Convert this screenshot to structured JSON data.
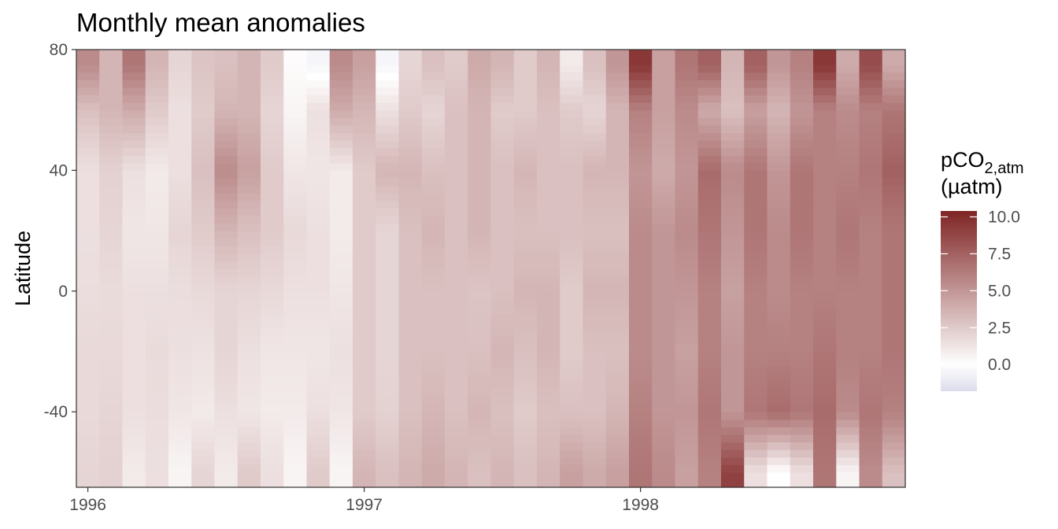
{
  "chart_data": {
    "type": "heatmap",
    "title": "Monthly mean anomalies",
    "xlabel": "",
    "ylabel": "Latitude",
    "x_ticks": [
      "1996",
      "1997",
      "1998"
    ],
    "x_range": [
      "1996-01",
      "1998-12"
    ],
    "y_ticks": [
      "80",
      "40",
      "0",
      "-40"
    ],
    "ylim": [
      -65,
      80
    ],
    "grid": false,
    "legend": {
      "title_main": "pCO",
      "title_sub": "2,atm",
      "title_unit": "(µatm)",
      "ticks": [
        "10.0",
        "7.5",
        "5.0",
        "2.5",
        "0.0"
      ],
      "range": [
        -1.8,
        10.4
      ],
      "placement": "right"
    },
    "colors": {
      "low": "#dcdcec",
      "mid": "#ffffff",
      "high": "#7f2424"
    },
    "months": [
      "1996-01",
      "1996-02",
      "1996-03",
      "1996-04",
      "1996-05",
      "1996-06",
      "1996-07",
      "1996-08",
      "1996-09",
      "1996-10",
      "1996-11",
      "1996-12",
      "1997-01",
      "1997-02",
      "1997-03",
      "1997-04",
      "1997-05",
      "1997-06",
      "1997-07",
      "1997-08",
      "1997-09",
      "1997-10",
      "1997-11",
      "1997-12",
      "1998-01",
      "1998-02",
      "1998-03",
      "1998-04",
      "1998-05",
      "1998-06",
      "1998-07",
      "1998-08",
      "1998-09",
      "1998-10",
      "1998-11",
      "1998-12"
    ],
    "latitudes": [
      -60,
      -40,
      -20,
      0,
      20,
      40,
      60,
      75
    ],
    "values": [
      [
        2.0,
        1.8,
        1.8,
        1.6,
        1.5,
        1.5,
        3.0,
        5.5
      ],
      [
        2.2,
        2.0,
        1.8,
        1.7,
        2.0,
        2.2,
        3.5,
        3.5
      ],
      [
        1.0,
        1.5,
        1.5,
        1.5,
        1.2,
        1.5,
        4.0,
        6.5
      ],
      [
        1.5,
        1.6,
        1.7,
        1.5,
        1.2,
        1.0,
        2.5,
        3.5
      ],
      [
        0.5,
        1.2,
        1.5,
        1.6,
        2.0,
        1.5,
        1.5,
        2.0
      ],
      [
        2.0,
        1.0,
        1.4,
        1.8,
        2.5,
        3.0,
        2.5,
        2.8
      ],
      [
        1.0,
        1.5,
        2.0,
        2.0,
        3.5,
        5.5,
        3.5,
        3.0
      ],
      [
        2.5,
        1.2,
        1.5,
        2.0,
        3.0,
        4.5,
        3.5,
        3.5
      ],
      [
        1.5,
        1.0,
        1.2,
        1.8,
        2.5,
        2.5,
        2.0,
        2.5
      ],
      [
        0.5,
        1.0,
        1.2,
        1.5,
        1.8,
        1.2,
        0.5,
        0.2
      ],
      [
        2.5,
        1.5,
        1.2,
        1.5,
        1.5,
        1.2,
        1.5,
        -0.5
      ],
      [
        0.5,
        1.2,
        1.5,
        1.2,
        1.0,
        1.0,
        4.0,
        5.5
      ],
      [
        3.5,
        2.5,
        2.5,
        2.5,
        2.5,
        2.5,
        3.5,
        4.5
      ],
      [
        3.0,
        2.2,
        2.0,
        2.0,
        2.0,
        3.5,
        1.5,
        -0.5
      ],
      [
        3.5,
        3.0,
        3.0,
        3.0,
        3.0,
        3.5,
        2.5,
        2.0
      ],
      [
        4.0,
        3.5,
        3.0,
        3.0,
        3.5,
        3.0,
        2.0,
        3.0
      ],
      [
        3.5,
        3.0,
        3.0,
        3.0,
        3.0,
        3.0,
        3.0,
        2.5
      ],
      [
        3.0,
        3.5,
        3.0,
        2.8,
        3.5,
        3.5,
        3.5,
        4.0
      ],
      [
        3.5,
        3.0,
        3.5,
        3.0,
        3.0,
        3.0,
        2.5,
        3.5
      ],
      [
        3.0,
        2.5,
        3.0,
        3.5,
        3.0,
        3.5,
        2.5,
        2.5
      ],
      [
        3.5,
        3.0,
        3.5,
        3.5,
        3.0,
        3.0,
        3.0,
        3.5
      ],
      [
        4.5,
        3.0,
        2.5,
        2.5,
        3.0,
        3.0,
        2.5,
        1.0
      ],
      [
        4.0,
        3.0,
        3.0,
        3.5,
        3.0,
        3.5,
        2.0,
        3.0
      ],
      [
        4.5,
        3.5,
        3.0,
        3.5,
        3.0,
        3.5,
        3.5,
        5.0
      ],
      [
        6.5,
        6.0,
        5.5,
        5.5,
        5.5,
        5.0,
        6.0,
        9.5
      ],
      [
        5.5,
        5.0,
        5.0,
        5.0,
        5.0,
        4.0,
        4.5,
        4.5
      ],
      [
        4.5,
        5.0,
        4.5,
        5.0,
        5.5,
        5.0,
        5.5,
        6.5
      ],
      [
        6.0,
        6.5,
        6.0,
        6.0,
        6.5,
        7.0,
        4.0,
        7.5
      ],
      [
        9.0,
        5.0,
        5.0,
        4.5,
        5.0,
        5.5,
        3.0,
        3.5
      ],
      [
        1.5,
        6.5,
        6.0,
        6.0,
        6.5,
        6.5,
        4.5,
        7.5
      ],
      [
        0.0,
        7.0,
        6.0,
        5.5,
        5.5,
        5.0,
        3.5,
        5.0
      ],
      [
        1.5,
        6.5,
        6.0,
        6.0,
        6.5,
        6.5,
        5.0,
        6.0
      ],
      [
        6.5,
        7.0,
        6.5,
        6.0,
        6.0,
        6.0,
        6.0,
        9.5
      ],
      [
        0.5,
        5.5,
        6.0,
        6.0,
        6.5,
        6.0,
        5.5,
        4.0
      ],
      [
        5.5,
        6.5,
        6.0,
        6.0,
        6.0,
        6.5,
        6.0,
        8.5
      ],
      [
        3.0,
        6.0,
        6.5,
        6.5,
        6.5,
        7.5,
        6.5,
        4.0
      ]
    ]
  }
}
